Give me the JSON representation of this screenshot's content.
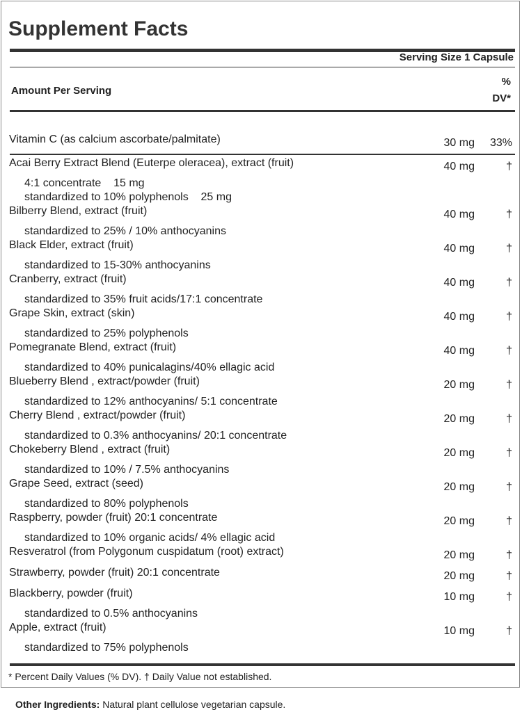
{
  "title": "Supplement Facts",
  "serving_size": "Serving Size 1 Capsule",
  "amount_per_serving": "Amount Per Serving",
  "dv_header": {
    "line1": "%",
    "line2": "DV*"
  },
  "rows": [
    {
      "name": "Vitamin C (as calcium ascorbate/palmitate)",
      "amount": "30 mg",
      "dv": "33%",
      "sub": []
    },
    {
      "name": "Acai Berry Extract Blend (Euterpe oleracea), extract (fruit)",
      "amount": "40 mg",
      "dv": "†",
      "sub": [
        "4:1 concentrate    15 mg",
        "standardized to 10% polyphenols    25 mg"
      ]
    },
    {
      "name": "Bilberry Blend, extract (fruit)",
      "amount": "40 mg",
      "dv": "†",
      "sub": [
        "standardized to 25% / 10% anthocyanins"
      ]
    },
    {
      "name": "Black Elder, extract (fruit)",
      "amount": "40 mg",
      "dv": "†",
      "sub": [
        "standardized to 15-30% anthocyanins"
      ]
    },
    {
      "name": "Cranberry, extract (fruit)",
      "amount": "40 mg",
      "dv": "†",
      "sub": [
        "standardized to 35% fruit acids/17:1 concentrate"
      ]
    },
    {
      "name": "Grape Skin, extract (skin)",
      "amount": "40 mg",
      "dv": "†",
      "sub": [
        "standardized to 25% polyphenols"
      ]
    },
    {
      "name": "Pomegranate Blend, extract (fruit)",
      "amount": "40 mg",
      "dv": "†",
      "sub": [
        "standardized to 40% punicalagins/40% ellagic acid"
      ]
    },
    {
      "name": "Blueberry Blend , extract/powder (fruit)",
      "amount": "20 mg",
      "dv": "†",
      "sub": [
        "standardized to 12% anthocyanins/ 5:1 concentrate"
      ]
    },
    {
      "name": "Cherry Blend , extract/powder (fruit)",
      "amount": "20 mg",
      "dv": "†",
      "sub": [
        "standardized to 0.3% anthocyanins/ 20:1 concentrate"
      ]
    },
    {
      "name": "Chokeberry Blend , extract (fruit)",
      "amount": "20 mg",
      "dv": "†",
      "sub": [
        "standardized to 10% / 7.5% anthocyanins"
      ]
    },
    {
      "name": "Grape Seed, extract (seed)",
      "amount": "20 mg",
      "dv": "†",
      "sub": [
        "standardized to 80% polyphenols"
      ]
    },
    {
      "name": "Raspberry, powder (fruit) 20:1 concentrate",
      "amount": "20 mg",
      "dv": "†",
      "sub": [
        "standardized to 10% organic acids/ 4% ellagic acid"
      ]
    },
    {
      "name": "Resveratrol (from Polygonum cuspidatum (root) extract)",
      "amount": "20 mg",
      "dv": "†",
      "sub": []
    },
    {
      "name": "Strawberry, powder (fruit) 20:1 concentrate",
      "amount": "20 mg",
      "dv": "†",
      "sub": []
    },
    {
      "name": "Blackberry, powder (fruit)",
      "amount": "10 mg",
      "dv": "†",
      "sub": [
        "standardized to 0.5% anthocyanins"
      ]
    },
    {
      "name": "Apple, extract (fruit)",
      "amount": "10 mg",
      "dv": "†",
      "sub": [
        "standardized to 75% polyphenols"
      ]
    }
  ],
  "footnote": "* Percent Daily Values (% DV). † Daily Value not established.",
  "other_ingredients": {
    "label": "Other Ingredients:",
    "text": "Natural plant cellulose vegetarian capsule."
  }
}
